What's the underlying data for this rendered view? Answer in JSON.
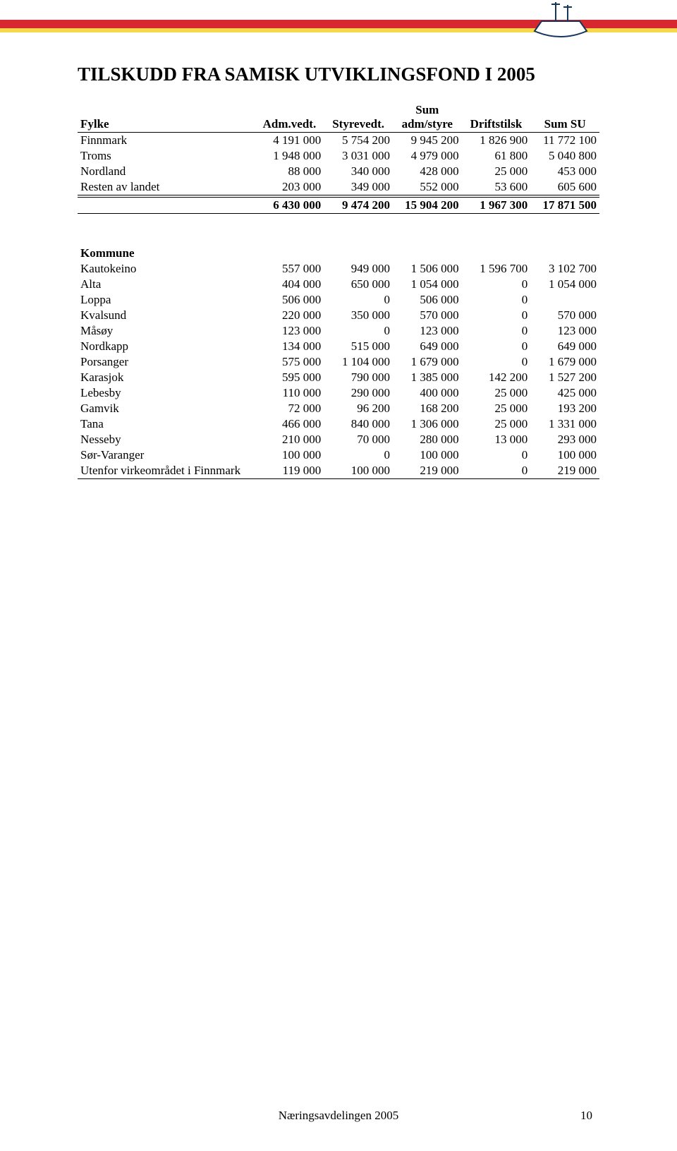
{
  "colors": {
    "red": "#d7282f",
    "yellow": "#f7d84a",
    "text": "#000000",
    "bg": "#ffffff"
  },
  "title": "TILSKUDD FRA SAMISK UTVIKLINGSFOND I  2005",
  "fylke_table": {
    "headers": [
      "Fylke",
      "Adm.vedt.",
      "Styrevedt.",
      "Sum adm/styre",
      "Driftstilsk",
      "Sum SU"
    ],
    "rows": [
      [
        "Finnmark",
        "4 191 000",
        "5 754 200",
        "9 945 200",
        "1 826 900",
        "11 772 100"
      ],
      [
        "Troms",
        "1 948 000",
        "3 031 000",
        "4 979 000",
        "61 800",
        "5 040 800"
      ],
      [
        "Nordland",
        "88 000",
        "340 000",
        "428 000",
        "25 000",
        "453 000"
      ],
      [
        "Resten av landet",
        "203 000",
        "349 000",
        "552 000",
        "53 600",
        "605 600"
      ]
    ],
    "total": [
      "",
      "6 430 000",
      "9 474 200",
      "15 904 200",
      "1 967 300",
      "17 871 500"
    ]
  },
  "kommune_table": {
    "header": "Kommune",
    "rows": [
      [
        "Kautokeino",
        "557 000",
        "949 000",
        "1 506 000",
        "1 596 700",
        "3 102 700"
      ],
      [
        "Alta",
        "404 000",
        "650 000",
        "1 054 000",
        "0",
        "1 054 000"
      ],
      [
        "Loppa",
        "506 000",
        "0",
        "506 000",
        "0",
        ""
      ],
      [
        "Kvalsund",
        "220 000",
        "350 000",
        "570 000",
        "0",
        "570 000"
      ],
      [
        "Måsøy",
        "123 000",
        "0",
        "123 000",
        "0",
        "123 000"
      ],
      [
        "Nordkapp",
        "134 000",
        "515 000",
        "649 000",
        "0",
        "649 000"
      ],
      [
        "Porsanger",
        "575 000",
        "1 104 000",
        "1 679 000",
        "0",
        "1 679 000"
      ],
      [
        "Karasjok",
        "595 000",
        "790 000",
        "1 385 000",
        "142 200",
        "1 527 200"
      ],
      [
        "Lebesby",
        "110 000",
        "290 000",
        "400 000",
        "25 000",
        "425 000"
      ],
      [
        "Gamvik",
        "72 000",
        "96 200",
        "168 200",
        "25 000",
        "193 200"
      ],
      [
        "Tana",
        "466 000",
        "840 000",
        "1 306 000",
        "25 000",
        "1 331 000"
      ],
      [
        "Nesseby",
        "210 000",
        "70 000",
        "280 000",
        "13 000",
        "293 000"
      ],
      [
        "Sør-Varanger",
        "100 000",
        "0",
        "100 000",
        "0",
        "100 000"
      ],
      [
        "Utenfor virkeområdet i Finnmark",
        "119 000",
        "100 000",
        "219 000",
        "0",
        "219 000"
      ]
    ]
  },
  "footer": "Næringsavdelingen 2005",
  "page_number": "10"
}
